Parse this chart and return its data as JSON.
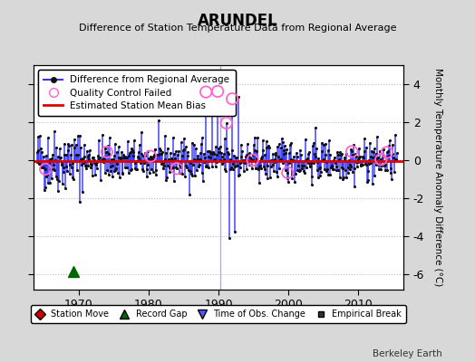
{
  "title": "ARUNDEL",
  "subtitle": "Difference of Station Temperature Data from Regional Average",
  "ylabel": "Monthly Temperature Anomaly Difference (°C)",
  "credit": "Berkeley Earth",
  "xlim": [
    1963.5,
    2016.5
  ],
  "ylim": [
    -6.8,
    5.0
  ],
  "yticks": [
    -6,
    -4,
    -2,
    0,
    2,
    4
  ],
  "xticks": [
    1970,
    1980,
    1990,
    2000,
    2010
  ],
  "bias_line_y": -0.05,
  "record_gap_x": 1969.3,
  "record_gap_y": -5.85,
  "time_of_obs_x": 1990.3,
  "bg_color": "#d8d8d8",
  "plot_bg_color": "#ffffff",
  "line_color": "#3333ff",
  "dot_color": "#111111",
  "bias_color": "#dd0000",
  "qc_color": "#ff66cc",
  "grid_color": "#bbbbbb",
  "seed": 42,
  "x_start": 1964.0,
  "x_end": 2015.5
}
